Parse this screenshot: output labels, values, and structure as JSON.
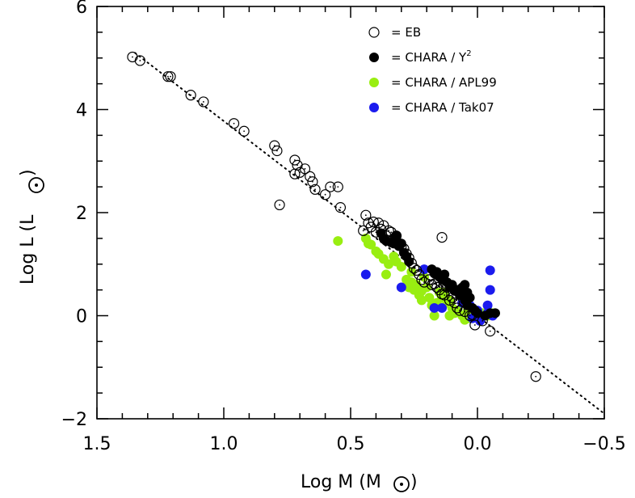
{
  "chart_data": {
    "type": "scatter",
    "xlabel": "Log M (M",
    "ylabel": "Log L (L",
    "xlim": [
      1.5,
      -0.5
    ],
    "ylim": [
      -2,
      6
    ],
    "x_ticks": [
      1.5,
      1.0,
      0.5,
      0.0,
      -0.5
    ],
    "x_tick_labels": [
      "1.5",
      "1.0",
      "0.5",
      "0.0",
      "−0.5"
    ],
    "y_ticks": [
      -2,
      0,
      2,
      4,
      6
    ],
    "y_tick_labels": [
      "−2",
      "0",
      "2",
      "4",
      "6"
    ],
    "grid": false,
    "legend_position": "top-right",
    "fit_line": {
      "style": "dotted",
      "x": [
        1.35,
        -0.5
      ],
      "y": [
        5.1,
        -1.9
      ]
    },
    "series": [
      {
        "name": "= EB",
        "marker": "open-circle",
        "color": "#000000",
        "points": [
          [
            1.36,
            5.02
          ],
          [
            1.33,
            4.95
          ],
          [
            1.22,
            4.64
          ],
          [
            1.21,
            4.64
          ],
          [
            1.13,
            4.28
          ],
          [
            1.08,
            4.15
          ],
          [
            0.96,
            3.73
          ],
          [
            0.92,
            3.58
          ],
          [
            0.8,
            3.3
          ],
          [
            0.79,
            3.2
          ],
          [
            0.72,
            3.02
          ],
          [
            0.71,
            2.92
          ],
          [
            0.7,
            2.78
          ],
          [
            0.68,
            2.85
          ],
          [
            0.66,
            2.7
          ],
          [
            0.65,
            2.6
          ],
          [
            0.64,
            2.45
          ],
          [
            0.6,
            2.35
          ],
          [
            0.58,
            2.5
          ],
          [
            0.55,
            2.5
          ],
          [
            0.54,
            2.1
          ],
          [
            0.78,
            2.15
          ],
          [
            0.72,
            2.75
          ],
          [
            0.44,
            1.95
          ],
          [
            0.43,
            1.8
          ],
          [
            0.42,
            1.72
          ],
          [
            0.41,
            1.82
          ],
          [
            0.4,
            1.62
          ],
          [
            0.39,
            1.8
          ],
          [
            0.38,
            1.68
          ],
          [
            0.37,
            1.75
          ],
          [
            0.36,
            1.55
          ],
          [
            0.35,
            1.65
          ],
          [
            0.34,
            1.62
          ],
          [
            0.33,
            1.48
          ],
          [
            0.32,
            1.55
          ],
          [
            0.31,
            1.4
          ],
          [
            0.3,
            1.35
          ],
          [
            0.29,
            1.3
          ],
          [
            0.28,
            1.2
          ],
          [
            0.27,
            1.12
          ],
          [
            0.26,
            1.02
          ],
          [
            0.25,
            0.92
          ],
          [
            0.24,
            0.88
          ],
          [
            0.23,
            0.8
          ],
          [
            0.22,
            0.7
          ],
          [
            0.21,
            0.65
          ],
          [
            0.19,
            0.7
          ],
          [
            0.18,
            0.6
          ],
          [
            0.17,
            0.62
          ],
          [
            0.16,
            0.55
          ],
          [
            0.15,
            0.5
          ],
          [
            0.14,
            0.42
          ],
          [
            0.13,
            0.4
          ],
          [
            0.12,
            0.55
          ],
          [
            0.11,
            0.3
          ],
          [
            0.1,
            0.35
          ],
          [
            0.09,
            0.25
          ],
          [
            0.08,
            0.15
          ],
          [
            0.07,
            0.1
          ],
          [
            0.05,
            0.08
          ],
          [
            0.02,
            0.02
          ],
          [
            0.01,
            -0.18
          ],
          [
            -0.02,
            -0.1
          ],
          [
            -0.05,
            -0.3
          ],
          [
            -0.23,
            -1.18
          ],
          [
            0.45,
            1.65
          ],
          [
            0.14,
            1.52
          ],
          [
            0.03,
            0.0
          ]
        ]
      },
      {
        "name": "= CHARA / Y",
        "marker": "filled-circle",
        "color": "#000000",
        "points": [
          [
            0.38,
            1.6
          ],
          [
            0.37,
            1.5
          ],
          [
            0.36,
            1.45
          ],
          [
            0.34,
            1.42
          ],
          [
            0.33,
            1.4
          ],
          [
            0.32,
            1.55
          ],
          [
            0.31,
            1.35
          ],
          [
            0.3,
            1.4
          ],
          [
            0.29,
            1.22
          ],
          [
            0.28,
            1.15
          ],
          [
            0.27,
            1.05
          ],
          [
            0.18,
            0.9
          ],
          [
            0.17,
            0.82
          ],
          [
            0.16,
            0.85
          ],
          [
            0.15,
            0.75
          ],
          [
            0.14,
            0.7
          ],
          [
            0.13,
            0.8
          ],
          [
            0.12,
            0.65
          ],
          [
            0.11,
            0.55
          ],
          [
            0.1,
            0.6
          ],
          [
            0.09,
            0.48
          ],
          [
            0.08,
            0.5
          ],
          [
            0.07,
            0.4
          ],
          [
            0.06,
            0.55
          ],
          [
            0.05,
            0.6
          ],
          [
            0.05,
            0.3
          ],
          [
            0.04,
            0.2
          ],
          [
            0.03,
            0.35
          ],
          [
            0.02,
            0.15
          ],
          [
            0.01,
            0.1
          ],
          [
            -0.03,
            0.0
          ],
          [
            -0.05,
            0.05
          ],
          [
            -0.07,
            0.05
          ],
          [
            0.0,
            0.05
          ],
          [
            0.04,
            0.45
          ]
        ]
      },
      {
        "name": "= CHARA / APL99",
        "marker": "filled-circle",
        "color": "#99ee11",
        "points": [
          [
            0.55,
            1.45
          ],
          [
            0.44,
            1.5
          ],
          [
            0.43,
            1.4
          ],
          [
            0.42,
            1.38
          ],
          [
            0.4,
            1.25
          ],
          [
            0.39,
            1.2
          ],
          [
            0.37,
            1.1
          ],
          [
            0.36,
            0.8
          ],
          [
            0.35,
            1.0
          ],
          [
            0.33,
            1.15
          ],
          [
            0.32,
            1.05
          ],
          [
            0.3,
            0.95
          ],
          [
            0.28,
            0.7
          ],
          [
            0.27,
            0.55
          ],
          [
            0.26,
            0.65
          ],
          [
            0.25,
            0.5
          ],
          [
            0.24,
            0.6
          ],
          [
            0.23,
            0.4
          ],
          [
            0.22,
            0.48
          ],
          [
            0.21,
            0.75
          ],
          [
            0.2,
            0.55
          ],
          [
            0.19,
            0.35
          ],
          [
            0.18,
            0.2
          ],
          [
            0.17,
            0.0
          ],
          [
            0.16,
            0.25
          ],
          [
            0.15,
            0.45
          ],
          [
            0.14,
            0.35
          ],
          [
            0.12,
            0.25
          ],
          [
            0.11,
            0.3
          ],
          [
            0.1,
            0.15
          ],
          [
            0.09,
            0.05
          ],
          [
            0.08,
            0.1
          ],
          [
            0.06,
            0.0
          ],
          [
            0.05,
            -0.08
          ],
          [
            0.04,
            0.08
          ],
          [
            0.03,
            -0.05
          ],
          [
            0.02,
            0.1
          ],
          [
            -0.02,
            0.05
          ],
          [
            -0.04,
            0.0
          ],
          [
            -0.06,
            0.05
          ],
          [
            0.26,
            0.85
          ],
          [
            0.28,
            1.15
          ],
          [
            0.22,
            0.3
          ],
          [
            0.13,
            0.45
          ],
          [
            0.11,
            0.0
          ]
        ]
      },
      {
        "name": "= CHARA / Tak07",
        "marker": "filled-circle",
        "color": "#1b1bee",
        "points": [
          [
            0.44,
            0.8
          ],
          [
            0.3,
            0.55
          ],
          [
            0.21,
            0.9
          ],
          [
            0.17,
            0.15
          ],
          [
            0.14,
            0.15
          ],
          [
            0.06,
            0.25
          ],
          [
            0.05,
            0.45
          ],
          [
            0.03,
            0.2
          ],
          [
            0.02,
            -0.05
          ],
          [
            0.0,
            0.1
          ],
          [
            -0.01,
            -0.1
          ],
          [
            -0.04,
            0.05
          ],
          [
            -0.05,
            0.88
          ],
          [
            -0.05,
            0.5
          ],
          [
            -0.04,
            0.2
          ],
          [
            -0.06,
            0.0
          ]
        ]
      }
    ]
  }
}
